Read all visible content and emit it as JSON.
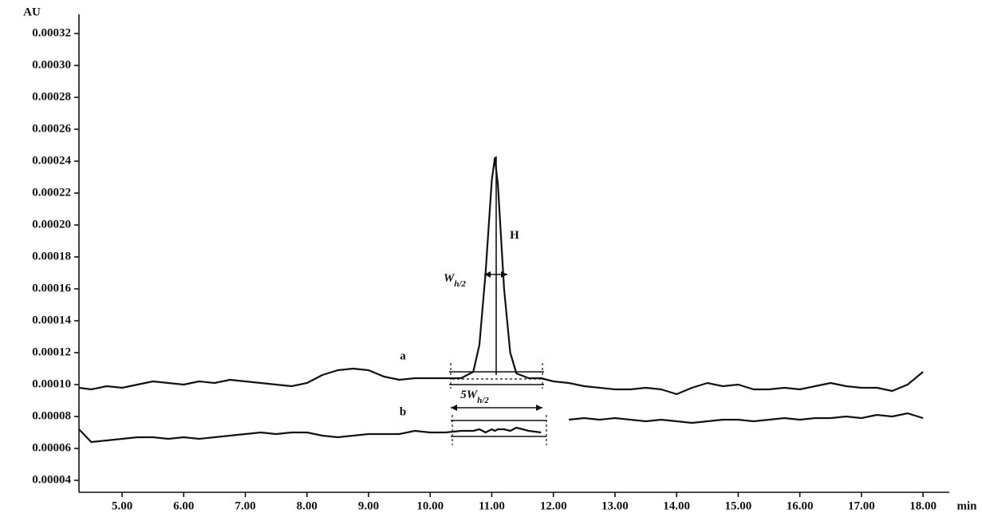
{
  "chart_data": {
    "type": "line",
    "y_label": "AU",
    "x_label": "min",
    "x": [
      4.3,
      4.5,
      4.75,
      5.0,
      5.25,
      5.5,
      5.75,
      6.0,
      6.25,
      6.5,
      6.75,
      7.0,
      7.25,
      7.5,
      7.75,
      8.0,
      8.25,
      8.5,
      8.75,
      9.0,
      9.25,
      9.5,
      9.75,
      10.0,
      10.25,
      10.5,
      10.7,
      10.8,
      10.9,
      11.0,
      11.05,
      11.1,
      11.2,
      11.3,
      11.4,
      11.6,
      11.8,
      12.0,
      12.25,
      12.5,
      12.75,
      13.0,
      13.25,
      13.5,
      13.75,
      14.0,
      14.25,
      14.5,
      14.75,
      15.0,
      15.25,
      15.5,
      15.75,
      16.0,
      16.25,
      16.5,
      16.75,
      17.0,
      17.25,
      17.5,
      17.75,
      18.0
    ],
    "series": [
      {
        "name": "a",
        "color": "#111111",
        "values": [
          9.8e-05,
          9.7e-05,
          9.9e-05,
          9.8e-05,
          0.0001,
          0.000102,
          0.000101,
          0.0001,
          0.000102,
          0.000101,
          0.000103,
          0.000102,
          0.000101,
          0.0001,
          9.9e-05,
          0.000101,
          0.000106,
          0.000109,
          0.00011,
          0.000109,
          0.000105,
          0.000103,
          0.000104,
          0.000104,
          0.000104,
          0.000104,
          0.000108,
          0.000125,
          0.00017,
          0.000228,
          0.000242,
          0.000225,
          0.00016,
          0.00012,
          0.000107,
          0.000104,
          0.000104,
          0.000102,
          0.000101,
          9.9e-05,
          9.8e-05,
          9.7e-05,
          9.7e-05,
          9.8e-05,
          9.7e-05,
          9.4e-05,
          9.8e-05,
          0.000101,
          9.9e-05,
          0.0001,
          9.7e-05,
          9.7e-05,
          9.8e-05,
          9.7e-05,
          9.9e-05,
          0.000101,
          9.9e-05,
          9.8e-05,
          9.8e-05,
          9.6e-05,
          0.0001,
          0.000108
        ]
      },
      {
        "name": "b",
        "color": "#111111",
        "values": [
          7.2e-05,
          6.4e-05,
          6.5e-05,
          6.6e-05,
          6.7e-05,
          6.7e-05,
          6.6e-05,
          6.7e-05,
          6.6e-05,
          6.7e-05,
          6.8e-05,
          6.9e-05,
          7e-05,
          6.9e-05,
          7e-05,
          7e-05,
          6.8e-05,
          6.7e-05,
          6.8e-05,
          6.9e-05,
          6.9e-05,
          6.9e-05,
          7.1e-05,
          7e-05,
          7e-05,
          7.1e-05,
          7.1e-05,
          7.2e-05,
          7e-05,
          7.2e-05,
          7.1e-05,
          7.2e-05,
          7.2e-05,
          7.1e-05,
          7.3e-05,
          7.1e-05,
          7e-05,
          null,
          7.8e-05,
          7.9e-05,
          7.8e-05,
          7.9e-05,
          7.8e-05,
          7.7e-05,
          7.8e-05,
          7.7e-05,
          7.6e-05,
          7.7e-05,
          7.8e-05,
          7.8e-05,
          7.7e-05,
          7.8e-05,
          7.9e-05,
          7.8e-05,
          7.9e-05,
          7.9e-05,
          8e-05,
          7.9e-05,
          8.1e-05,
          8e-05,
          8.2e-05,
          7.9e-05
        ]
      }
    ],
    "annotations": [
      {
        "text": "H"
      },
      {
        "text": "W",
        "sub": "h/2"
      },
      {
        "text": "5W",
        "sub": "h/2"
      }
    ],
    "xlim": [
      4.3,
      18.4
    ],
    "ylim": [
      3e-05,
      0.00033
    ],
    "xticks": [
      {
        "value": 5,
        "label": "5.00"
      },
      {
        "value": 6,
        "label": "6.00"
      },
      {
        "value": 7,
        "label": "7.00"
      },
      {
        "value": 8,
        "label": "8.00"
      },
      {
        "value": 9,
        "label": "9.00"
      },
      {
        "value": 10,
        "label": "10.00"
      },
      {
        "value": 11,
        "label": "11.00"
      },
      {
        "value": 12,
        "label": "12.00"
      },
      {
        "value": 13,
        "label": "13.00"
      },
      {
        "value": 14,
        "label": "14.00"
      },
      {
        "value": 15,
        "label": "15.00"
      },
      {
        "value": 16,
        "label": "16.00"
      },
      {
        "value": 17,
        "label": "17.00"
      },
      {
        "value": 18,
        "label": "18.00"
      }
    ],
    "yticks": [
      {
        "value": 4e-05,
        "label": "0.00004"
      },
      {
        "value": 6e-05,
        "label": "0.00006"
      },
      {
        "value": 8e-05,
        "label": "0.00008"
      },
      {
        "value": 0.0001,
        "label": "0.00010"
      },
      {
        "value": 0.00012,
        "label": "0.00012"
      },
      {
        "value": 0.00014,
        "label": "0.00014"
      },
      {
        "value": 0.00016,
        "label": "0.00016"
      },
      {
        "value": 0.00018,
        "label": "0.00018"
      },
      {
        "value": 0.0002,
        "label": "0.00020"
      },
      {
        "value": 0.00022,
        "label": "0.00022"
      },
      {
        "value": 0.00024,
        "label": "0.00024"
      },
      {
        "value": 0.00026,
        "label": "0.00026"
      },
      {
        "value": 0.00028,
        "label": "0.00028"
      },
      {
        "value": 0.0003,
        "label": "0.00030"
      },
      {
        "value": 0.00032,
        "label": "0.00032"
      }
    ],
    "grid": false
  }
}
